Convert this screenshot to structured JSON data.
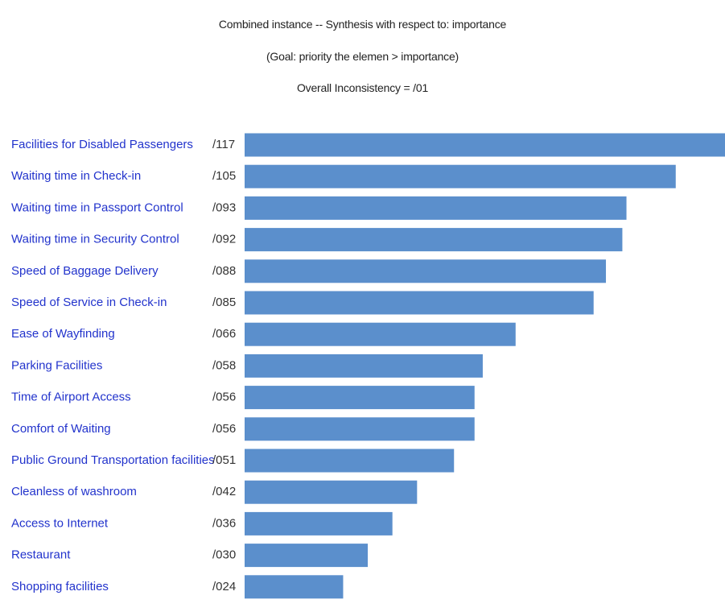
{
  "header": {
    "title": "Combined instance -- Synthesis with respect to: importance",
    "goal": "(Goal: priority the elemen > importance)",
    "inconsistency": "Overall Inconsistency = /01"
  },
  "chart_data": {
    "type": "bar",
    "orientation": "horizontal",
    "categories": [
      "Facilities for Disabled Passengers",
      "Waiting time in Check-in",
      "Waiting time in Passport Control",
      "Waiting time in Security Control",
      "Speed of Baggage Delivery",
      "Speed of Service in Check-in",
      "Ease of Wayfinding",
      "Parking Facilities",
      "Time of Airport Access",
      "Comfort of Waiting",
      "Public Ground Transportation facilities",
      "Cleanless of washroom",
      "Access to Internet",
      "Restaurant",
      "Shopping facilities"
    ],
    "values": [
      0.117,
      0.105,
      0.093,
      0.092,
      0.088,
      0.085,
      0.066,
      0.058,
      0.056,
      0.056,
      0.051,
      0.042,
      0.036,
      0.03,
      0.024
    ],
    "value_labels": [
      "/117",
      "/105",
      "/093",
      "/092",
      "/088",
      "/085",
      "/066",
      "/058",
      "/056",
      "/056",
      "/051",
      "/042",
      "/036",
      "/030",
      "/024"
    ],
    "title": "Combined instance -- Synthesis with respect to: importance",
    "xlim": [
      0,
      0.117
    ],
    "grid": false,
    "colors": {
      "bar": "#5b8fcc",
      "category_text": "#2233cc",
      "value_text": "#333333"
    }
  }
}
